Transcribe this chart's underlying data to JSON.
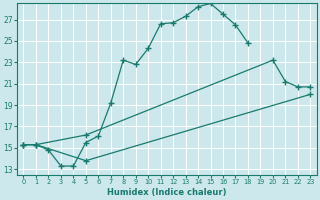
{
  "xlabel": "Humidex (Indice chaleur)",
  "bg_color": "#cce8ec",
  "line_color": "#1a7a6e",
  "grid_color": "#ffffff",
  "xlim": [
    -0.5,
    23.5
  ],
  "ylim": [
    12.5,
    28.5
  ],
  "yticks": [
    13,
    15,
    17,
    19,
    21,
    23,
    25,
    27
  ],
  "xticks": [
    0,
    1,
    2,
    3,
    4,
    5,
    6,
    7,
    8,
    9,
    10,
    11,
    12,
    13,
    14,
    15,
    16,
    17,
    18,
    19,
    20,
    21,
    22,
    23
  ],
  "s0x": [
    0,
    1,
    2,
    3,
    4,
    5,
    6,
    7,
    8,
    9,
    10,
    11,
    12,
    13,
    14,
    15,
    16,
    17,
    18
  ],
  "s0y": [
    15.3,
    15.3,
    14.8,
    13.3,
    13.3,
    15.5,
    16.1,
    19.2,
    23.2,
    22.8,
    24.3,
    26.6,
    26.7,
    27.3,
    28.2,
    28.5,
    27.5,
    26.5,
    24.8
  ],
  "s1x": [
    0,
    1,
    5,
    20,
    21,
    22,
    23
  ],
  "s1y": [
    15.3,
    15.3,
    16.2,
    23.2,
    21.2,
    20.7,
    20.7
  ],
  "s2x": [
    0,
    1,
    5,
    23
  ],
  "s2y": [
    15.3,
    15.3,
    13.8,
    20.0
  ]
}
